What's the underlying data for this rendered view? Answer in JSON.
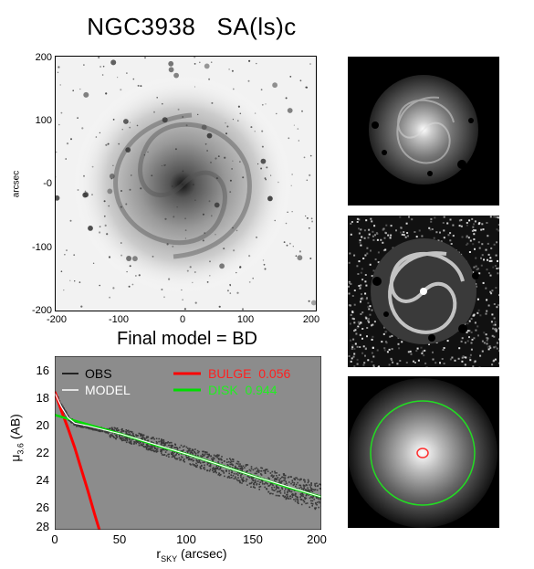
{
  "figure": {
    "title": "NGC3938   SA(ls)c",
    "subtitle": "Final model = BD"
  },
  "image_panel": {
    "ylabel": "arcsec",
    "x_ticks": [
      "-200",
      "-100",
      "0",
      "100",
      "200"
    ],
    "y_ticks": [
      "200",
      "100",
      "-0",
      "-100",
      "-200"
    ]
  },
  "right_panels": {
    "count": 3,
    "panel_3_markers": {
      "inner_color": "#ff3030",
      "outer_color": "#22dd22"
    }
  },
  "chart_data": {
    "type": "scatter",
    "xlabel_main": "r",
    "xlabel_sub": "SKY",
    "xlabel_unit": " (arcsec)",
    "ylabel_main": "μ",
    "ylabel_sub": "3.6",
    "ylabel_unit": " (AB)",
    "xlim": [
      0,
      200
    ],
    "ylim": [
      28,
      15.3
    ],
    "x_ticks": [
      "0",
      "50",
      "100",
      "150",
      "200"
    ],
    "y_ticks": [
      "16",
      "18",
      "20",
      "22",
      "24",
      "26",
      "28"
    ],
    "background": "#8c8c8c",
    "legend": [
      {
        "label": "OBS",
        "value": "",
        "color": "#000000"
      },
      {
        "label": "MODEL",
        "value": "",
        "color": "#ffffff"
      },
      {
        "label": "BULGE",
        "value": "0.056",
        "color": "#ff0000"
      },
      {
        "label": "DISK",
        "value": "0.944",
        "color": "#00dd00"
      }
    ],
    "series": [
      {
        "name": "BULGE",
        "x": [
          0,
          5,
          10,
          15,
          20,
          25,
          30,
          35
        ],
        "y": [
          17.9,
          19.3,
          20.6,
          22.0,
          23.6,
          25.2,
          26.9,
          28.5
        ]
      },
      {
        "name": "DISK",
        "x": [
          0,
          25,
          50,
          75,
          100,
          125,
          150,
          175,
          200
        ],
        "y": [
          19.6,
          20.3,
          21.0,
          21.8,
          22.5,
          23.3,
          24.1,
          24.9,
          25.6
        ]
      },
      {
        "name": "MODEL",
        "x": [
          0,
          5,
          10,
          15,
          25,
          50,
          100,
          150,
          200
        ],
        "y": [
          18.0,
          19.0,
          19.8,
          20.2,
          20.4,
          21.0,
          22.5,
          24.1,
          25.6
        ]
      }
    ],
    "obs": {
      "x_start": 1,
      "x_end": 200,
      "y_scatter": 0.4
    }
  }
}
